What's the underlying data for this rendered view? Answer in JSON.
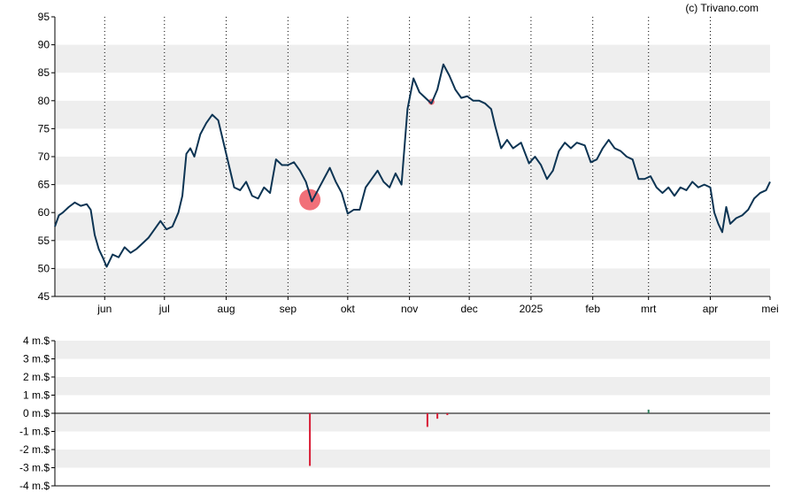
{
  "credit": "(c) Trivano.com",
  "colors": {
    "price_line": "#0c3453",
    "band": "#eeeeee",
    "marker": "#f0606a",
    "vol_negative": "#d81b34",
    "vol_positive": "#2e7d5b",
    "axis": "#000000"
  },
  "chart_data": [
    {
      "type": "line",
      "title": "",
      "xlabel": "",
      "ylabel": "",
      "ylim": [
        45,
        95
      ],
      "y_ticks": [
        "45",
        "50",
        "55",
        "60",
        "65",
        "70",
        "75",
        "80",
        "85",
        "90",
        "95"
      ],
      "x_range": [
        "2024-05-07",
        "2025-05-01"
      ],
      "x_tick_labels": [
        {
          "date": "2024-06-01",
          "label": "jun"
        },
        {
          "date": "2024-07-01",
          "label": "jul"
        },
        {
          "date": "2024-08-01",
          "label": "aug"
        },
        {
          "date": "2024-09-01",
          "label": "sep"
        },
        {
          "date": "2024-10-01",
          "label": "okt"
        },
        {
          "date": "2024-11-01",
          "label": "nov"
        },
        {
          "date": "2024-12-01",
          "label": "dec"
        },
        {
          "date": "2025-01-01",
          "label": "2025"
        },
        {
          "date": "2025-02-01",
          "label": "feb"
        },
        {
          "date": "2025-03-01",
          "label": "mrt"
        },
        {
          "date": "2025-04-01",
          "label": "apr"
        },
        {
          "date": "2025-05-01",
          "label": "mei"
        }
      ],
      "grid": "alternating horizontal bands, dotted vertical lines at month starts",
      "series": [
        {
          "points": [
            [
              "2024-05-07",
              57.5
            ],
            [
              "2024-05-09",
              59.5
            ],
            [
              "2024-05-11",
              60.0
            ],
            [
              "2024-05-14",
              61.0
            ],
            [
              "2024-05-17",
              61.8
            ],
            [
              "2024-05-20",
              61.2
            ],
            [
              "2024-05-23",
              61.5
            ],
            [
              "2024-05-25",
              60.5
            ],
            [
              "2024-05-27",
              56.0
            ],
            [
              "2024-05-29",
              53.5
            ],
            [
              "2024-05-31",
              52.0
            ],
            [
              "2024-06-02",
              50.3
            ],
            [
              "2024-06-05",
              52.5
            ],
            [
              "2024-06-08",
              52.0
            ],
            [
              "2024-06-11",
              53.8
            ],
            [
              "2024-06-14",
              52.8
            ],
            [
              "2024-06-17",
              53.5
            ],
            [
              "2024-06-20",
              54.5
            ],
            [
              "2024-06-23",
              55.5
            ],
            [
              "2024-06-26",
              57.0
            ],
            [
              "2024-06-29",
              58.5
            ],
            [
              "2024-07-02",
              57.0
            ],
            [
              "2024-07-05",
              57.5
            ],
            [
              "2024-07-08",
              60.0
            ],
            [
              "2024-07-10",
              63.0
            ],
            [
              "2024-07-12",
              70.5
            ],
            [
              "2024-07-14",
              71.5
            ],
            [
              "2024-07-16",
              70.0
            ],
            [
              "2024-07-19",
              74.0
            ],
            [
              "2024-07-22",
              76.0
            ],
            [
              "2024-07-25",
              77.5
            ],
            [
              "2024-07-28",
              76.5
            ],
            [
              "2024-08-01",
              70.5
            ],
            [
              "2024-08-05",
              64.5
            ],
            [
              "2024-08-08",
              64.0
            ],
            [
              "2024-08-11",
              65.5
            ],
            [
              "2024-08-14",
              63.0
            ],
            [
              "2024-08-17",
              62.5
            ],
            [
              "2024-08-20",
              64.5
            ],
            [
              "2024-08-23",
              63.5
            ],
            [
              "2024-08-26",
              69.5
            ],
            [
              "2024-08-29",
              68.5
            ],
            [
              "2024-09-01",
              68.5
            ],
            [
              "2024-09-04",
              69.0
            ],
            [
              "2024-09-07",
              67.5
            ],
            [
              "2024-09-10",
              65.5
            ],
            [
              "2024-09-13",
              62.0
            ],
            [
              "2024-09-16",
              64.0
            ],
            [
              "2024-09-19",
              66.0
            ],
            [
              "2024-09-22",
              68.0
            ],
            [
              "2024-09-25",
              65.5
            ],
            [
              "2024-09-28",
              63.5
            ],
            [
              "2024-10-01",
              59.8
            ],
            [
              "2024-10-04",
              60.5
            ],
            [
              "2024-10-07",
              60.5
            ],
            [
              "2024-10-10",
              64.5
            ],
            [
              "2024-10-13",
              66.0
            ],
            [
              "2024-10-16",
              67.5
            ],
            [
              "2024-10-19",
              65.5
            ],
            [
              "2024-10-22",
              64.5
            ],
            [
              "2024-10-25",
              67.0
            ],
            [
              "2024-10-28",
              65.0
            ],
            [
              "2024-10-31",
              78.5
            ],
            [
              "2024-11-03",
              84.0
            ],
            [
              "2024-11-06",
              81.5
            ],
            [
              "2024-11-09",
              80.5
            ],
            [
              "2024-11-12",
              79.5
            ],
            [
              "2024-11-15",
              82.0
            ],
            [
              "2024-11-18",
              86.5
            ],
            [
              "2024-11-21",
              84.5
            ],
            [
              "2024-11-24",
              82.0
            ],
            [
              "2024-11-27",
              80.5
            ],
            [
              "2024-11-30",
              80.8
            ],
            [
              "2024-12-03",
              80.0
            ],
            [
              "2024-12-06",
              80.0
            ],
            [
              "2024-12-09",
              79.5
            ],
            [
              "2024-12-12",
              78.5
            ],
            [
              "2024-12-14",
              75.5
            ],
            [
              "2024-12-17",
              71.5
            ],
            [
              "2024-12-20",
              73.0
            ],
            [
              "2024-12-23",
              71.5
            ],
            [
              "2024-12-27",
              72.5
            ],
            [
              "2024-12-31",
              68.8
            ],
            [
              "2025-01-03",
              70.0
            ],
            [
              "2025-01-06",
              68.5
            ],
            [
              "2025-01-09",
              66.0
            ],
            [
              "2025-01-12",
              67.5
            ],
            [
              "2025-01-15",
              71.0
            ],
            [
              "2025-01-18",
              72.5
            ],
            [
              "2025-01-21",
              71.5
            ],
            [
              "2025-01-24",
              72.5
            ],
            [
              "2025-01-28",
              72.0
            ],
            [
              "2025-01-31",
              69.0
            ],
            [
              "2025-02-03",
              69.5
            ],
            [
              "2025-02-06",
              71.5
            ],
            [
              "2025-02-09",
              73.0
            ],
            [
              "2025-02-12",
              71.5
            ],
            [
              "2025-02-15",
              71.0
            ],
            [
              "2025-02-18",
              70.0
            ],
            [
              "2025-02-21",
              69.5
            ],
            [
              "2025-02-24",
              66.0
            ],
            [
              "2025-02-27",
              66.0
            ],
            [
              "2025-03-02",
              66.5
            ],
            [
              "2025-03-05",
              64.5
            ],
            [
              "2025-03-08",
              63.5
            ],
            [
              "2025-03-11",
              64.5
            ],
            [
              "2025-03-14",
              63.0
            ],
            [
              "2025-03-17",
              64.5
            ],
            [
              "2025-03-20",
              64.0
            ],
            [
              "2025-03-23",
              65.5
            ],
            [
              "2025-03-26",
              64.5
            ],
            [
              "2025-03-29",
              65.0
            ],
            [
              "2025-04-01",
              64.5
            ],
            [
              "2025-04-03",
              60.0
            ],
            [
              "2025-04-05",
              58.0
            ],
            [
              "2025-04-07",
              56.5
            ],
            [
              "2025-04-09",
              61.0
            ],
            [
              "2025-04-11",
              58.0
            ],
            [
              "2025-04-14",
              59.0
            ],
            [
              "2025-04-17",
              59.5
            ],
            [
              "2025-04-20",
              60.5
            ],
            [
              "2025-04-23",
              62.5
            ],
            [
              "2025-04-26",
              63.5
            ],
            [
              "2025-04-29",
              64.0
            ],
            [
              "2025-05-01",
              65.5
            ]
          ]
        }
      ],
      "markers": [
        {
          "date": "2024-09-12",
          "value": 62.3,
          "size": "large"
        },
        {
          "date": "2024-11-12",
          "value": 79.8,
          "size": "small"
        }
      ]
    },
    {
      "type": "bar",
      "title": "",
      "xlabel": "",
      "ylabel": "",
      "ylim": [
        -4,
        4
      ],
      "y_ticks": [
        "-4 m.$",
        "-3 m.$",
        "-2 m.$",
        "-1 m.$",
        "0 m.$",
        "1 m.$",
        "2 m.$",
        "3 m.$",
        "4 m.$"
      ],
      "bars": [
        {
          "date": "2024-09-12",
          "value": -2.9
        },
        {
          "date": "2024-11-10",
          "value": -0.75
        },
        {
          "date": "2024-11-15",
          "value": -0.3
        },
        {
          "date": "2024-11-20",
          "value": -0.1
        },
        {
          "date": "2025-03-01",
          "value": 0.2
        }
      ]
    }
  ]
}
